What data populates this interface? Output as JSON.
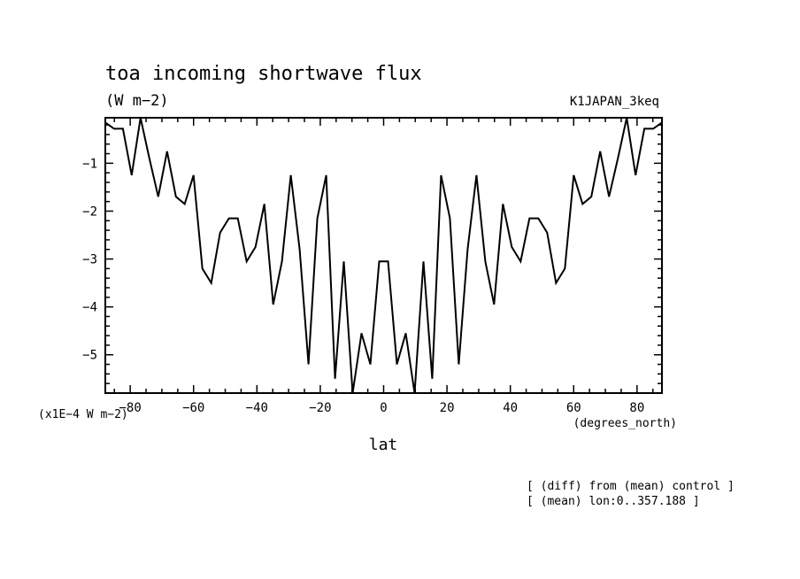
{
  "chart_data": {
    "type": "line",
    "title": "toa incoming shortwave flux",
    "units": "(W m−2)",
    "experiment": "K1JAPAN_3keq",
    "ylabel": "(x1E−4 W m−2)",
    "xlabel": "lat",
    "xunits": "(degrees_north)",
    "notes": [
      "[ (diff) from (mean) control ]",
      "[ (mean) lon:0..357.188 ]"
    ],
    "xlim": [
      -87.8638,
      87.8638
    ],
    "ylim": [
      -5.8,
      -0.05
    ],
    "x_ticks": [
      -80,
      -60,
      -40,
      -20,
      0,
      20,
      40,
      60,
      80
    ],
    "y_ticks": [
      -1,
      -2,
      -3,
      -4,
      -5
    ],
    "grid": false,
    "legend": "none",
    "series": [
      {
        "x": [
          -87.86,
          -85.1,
          -82.31,
          -79.53,
          -76.74,
          -73.95,
          -71.16,
          -68.37,
          -65.58,
          -62.79,
          -60.0,
          -57.21,
          -54.42,
          -51.63,
          -48.84,
          -46.05,
          -43.25,
          -40.46,
          -37.67,
          -34.88,
          -32.09,
          -29.3,
          -26.51,
          -23.72,
          -20.93,
          -18.14,
          -15.35,
          -12.56,
          -9.77,
          -6.98,
          -4.19,
          -1.4,
          1.4,
          4.19,
          6.98,
          9.77,
          12.56,
          15.35,
          18.14,
          20.93,
          23.72,
          26.51,
          29.3,
          32.09,
          34.88,
          37.67,
          40.46,
          43.25,
          46.05,
          48.84,
          51.63,
          54.42,
          57.21,
          60.0,
          62.79,
          65.58,
          68.37,
          71.16,
          73.95,
          76.74,
          79.53,
          82.31,
          85.1,
          87.86
        ],
        "y": [
          -0.15,
          -0.28,
          -0.28,
          -1.25,
          -0.05,
          -0.9,
          -1.7,
          -0.75,
          -1.7,
          -1.85,
          -1.25,
          -3.2,
          -3.5,
          -2.45,
          -2.15,
          -2.15,
          -3.05,
          -2.75,
          -1.85,
          -3.95,
          -3.05,
          -1.25,
          -2.8,
          -5.2,
          -2.15,
          -1.25,
          -5.5,
          -3.05,
          -5.8,
          -4.55,
          -5.2,
          -3.05,
          -3.05,
          -5.2,
          -4.55,
          -5.8,
          -3.05,
          -5.5,
          -1.25,
          -2.15,
          -5.2,
          -2.8,
          -1.25,
          -3.05,
          -3.95,
          -1.85,
          -2.75,
          -3.05,
          -2.15,
          -2.15,
          -2.45,
          -3.5,
          -3.2,
          -1.25,
          -1.85,
          -1.7,
          -0.75,
          -1.7,
          -0.9,
          -0.05,
          -1.25,
          -0.28,
          -0.28,
          -0.15
        ]
      }
    ]
  }
}
